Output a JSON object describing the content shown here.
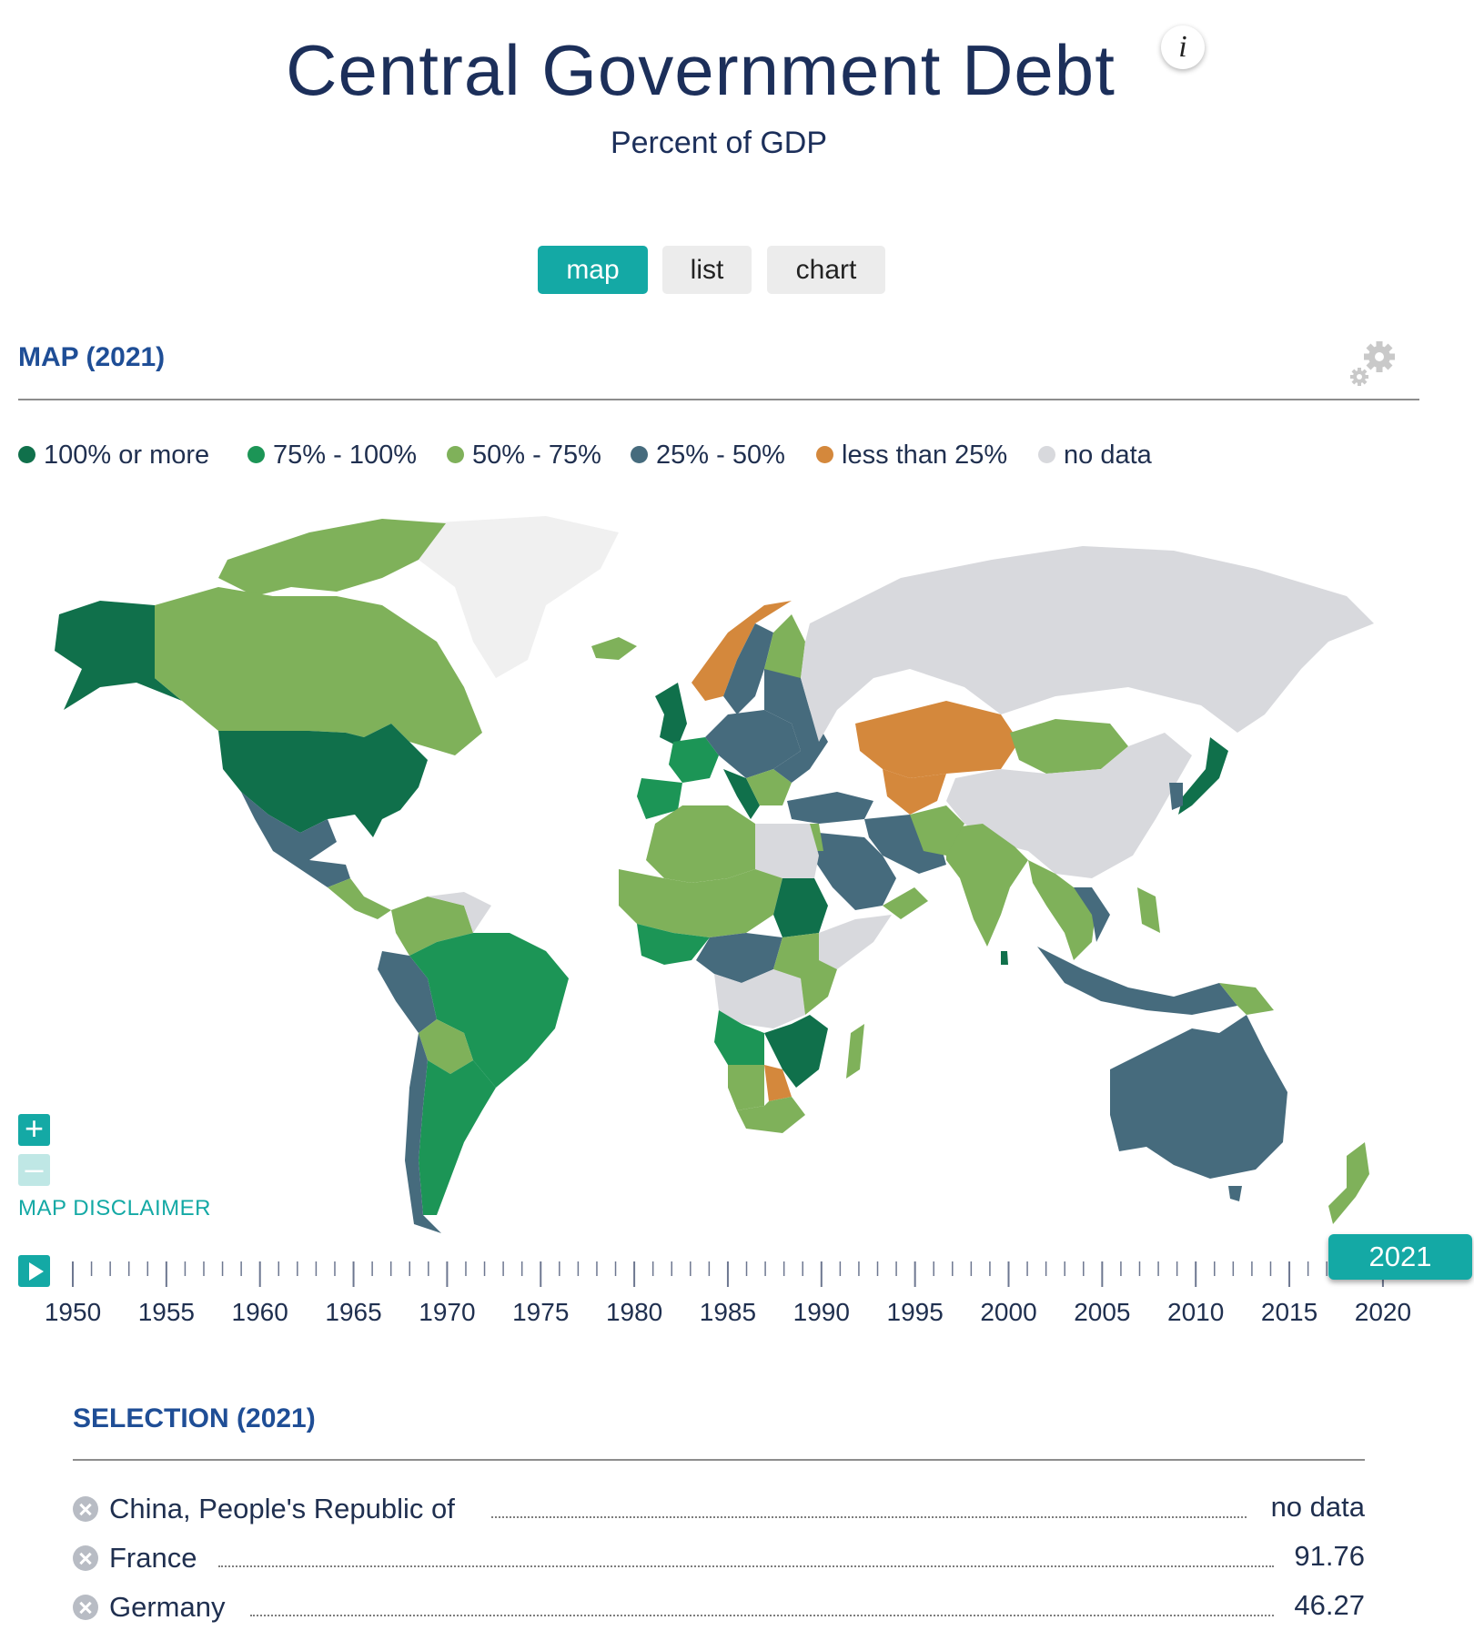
{
  "header": {
    "title": "Central Government Debt",
    "subtitle": "Percent of GDP",
    "info_icon": "info-icon",
    "info_glyph": "i"
  },
  "tabs": [
    {
      "label": "map",
      "active": true
    },
    {
      "label": "list",
      "active": false
    },
    {
      "label": "chart",
      "active": false
    }
  ],
  "map_section": {
    "heading": "MAP (2021)",
    "settings_icon": "gear-icon",
    "disclaimer": "MAP DISCLAIMER",
    "zoom_in_icon": "plus-icon",
    "zoom_out_icon": "minus-icon",
    "zoom_in_glyph": "+",
    "zoom_out_glyph": "–"
  },
  "legend": [
    {
      "label": "100% or more",
      "color": "#10704b"
    },
    {
      "label": "75% - 100%",
      "color": "#1c9556"
    },
    {
      "label": "50% - 75%",
      "color": "#7fb15a"
    },
    {
      "label": "25% - 50%",
      "color": "#466b7d"
    },
    {
      "label": "less than 25%",
      "color": "#d4883c"
    },
    {
      "label": "no data",
      "color": "#d8d9dd"
    }
  ],
  "timeline": {
    "play_icon": "play-icon",
    "years": [
      "1950",
      "1955",
      "1960",
      "1965",
      "1970",
      "1975",
      "1980",
      "1985",
      "1990",
      "1995",
      "2000",
      "2005",
      "2010",
      "2015",
      "2020"
    ],
    "selected_year": "2021"
  },
  "selection": {
    "heading": "SELECTION (2021)",
    "remove_icon": "remove-icon",
    "rows": [
      {
        "name": "China, People's Republic of",
        "value": "no data"
      },
      {
        "name": "France",
        "value": "91.76"
      },
      {
        "name": "Germany",
        "value": "46.27"
      }
    ]
  }
}
